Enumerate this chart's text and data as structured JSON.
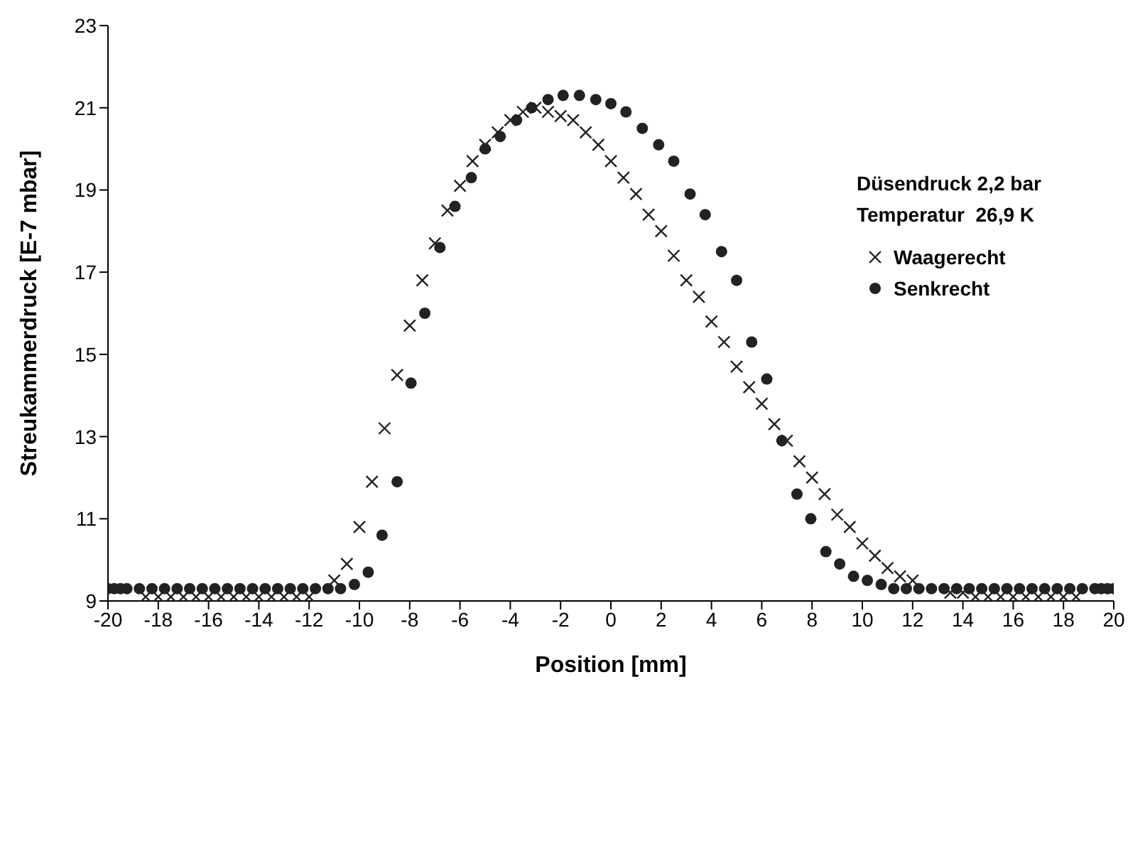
{
  "chart_data": {
    "type": "scatter",
    "xlabel": "Position [mm]",
    "ylabel": "Streukammerdruck [E-7 mbar]",
    "annotations": [
      "Düsendruck 2,2 bar",
      "Temperatur  26,9 K"
    ],
    "xlim": [
      -20,
      20
    ],
    "xticks": [
      -20,
      -18,
      -16,
      -14,
      -12,
      -10,
      -8,
      -6,
      -4,
      -2,
      0,
      2,
      4,
      6,
      8,
      10,
      12,
      14,
      16,
      18,
      20
    ],
    "ylim": [
      9,
      23
    ],
    "yticks": [
      9,
      11,
      13,
      15,
      17,
      19,
      21,
      23
    ],
    "grid": false,
    "legend": "top right",
    "series": [
      {
        "name": "Waagerecht",
        "color": "#222222",
        "marker": "cross",
        "x": [
          -18.5,
          -18,
          -17.5,
          -17,
          -16.5,
          -16,
          -15.5,
          -15,
          -14.5,
          -14,
          -13.5,
          -13,
          -12.5,
          -12,
          -11,
          -10.5,
          -10,
          -9.5,
          -9,
          -8.5,
          -8,
          -7.5,
          -7,
          -6.5,
          -6,
          -5.5,
          -5,
          -4.5,
          -4,
          -3.5,
          -3,
          -2.5,
          -2,
          -1.5,
          -1,
          -0.5,
          0,
          0.5,
          1,
          1.5,
          2,
          2.5,
          3,
          3.5,
          4,
          4.5,
          5,
          5.5,
          6,
          6.5,
          7,
          7.5,
          8,
          8.5,
          9,
          9.5,
          10,
          10.5,
          11,
          11.5,
          12,
          13.5,
          14,
          14.5,
          15,
          15.5,
          16,
          16.5,
          17,
          17.5,
          18,
          18.5
        ],
        "values": [
          9.1,
          9.1,
          9.1,
          9.1,
          9.1,
          9.1,
          9.1,
          9.1,
          9.1,
          9.1,
          9.1,
          9.1,
          9.1,
          9.1,
          9.5,
          9.9,
          10.8,
          11.9,
          13.2,
          14.5,
          15.7,
          16.8,
          17.7,
          18.5,
          19.1,
          19.7,
          20.1,
          20.4,
          20.7,
          20.9,
          21.0,
          20.9,
          20.8,
          20.7,
          20.4,
          20.1,
          19.7,
          19.3,
          18.9,
          18.4,
          18.0,
          17.4,
          16.8,
          16.4,
          15.8,
          15.3,
          14.7,
          14.2,
          13.8,
          13.3,
          12.9,
          12.4,
          12.0,
          11.6,
          11.1,
          10.8,
          10.4,
          10.1,
          9.8,
          9.6,
          9.5,
          9.2,
          9.2,
          9.1,
          9.1,
          9.1,
          9.1,
          9.1,
          9.1,
          9.1,
          9.1,
          9.1
        ]
      },
      {
        "name": "Senkrecht",
        "color": "#222222",
        "marker": "circle",
        "x": [
          -20,
          -19.75,
          -19.5,
          -19.25,
          -18.75,
          -18.25,
          -17.75,
          -17.25,
          -16.75,
          -16.25,
          -15.75,
          -15.25,
          -14.75,
          -14.25,
          -13.75,
          -13.25,
          -12.75,
          -12.25,
          -11.75,
          -11.25,
          -10.75,
          -10.2,
          -9.65,
          -9.1,
          -8.5,
          -7.95,
          -7.4,
          -6.8,
          -6.2,
          -5.55,
          -5,
          -4.4,
          -3.75,
          -3.15,
          -2.5,
          -1.9,
          -1.25,
          -0.6,
          0,
          0.6,
          1.25,
          1.9,
          2.5,
          3.15,
          3.75,
          4.4,
          5,
          5.6,
          6.2,
          6.8,
          7.4,
          7.95,
          8.55,
          9.1,
          9.65,
          10.2,
          10.75,
          11.25,
          11.75,
          12.25,
          12.75,
          13.25,
          13.75,
          14.25,
          14.75,
          15.25,
          15.75,
          16.25,
          16.75,
          17.25,
          17.75,
          18.25,
          18.75,
          19.25,
          19.5,
          19.75,
          20
        ],
        "values": [
          9.3,
          9.3,
          9.3,
          9.3,
          9.3,
          9.3,
          9.3,
          9.3,
          9.3,
          9.3,
          9.3,
          9.3,
          9.3,
          9.3,
          9.3,
          9.3,
          9.3,
          9.3,
          9.3,
          9.3,
          9.3,
          9.4,
          9.7,
          10.6,
          11.9,
          14.3,
          16.0,
          17.6,
          18.6,
          19.3,
          20.0,
          20.3,
          20.7,
          21.0,
          21.2,
          21.3,
          21.3,
          21.2,
          21.1,
          20.9,
          20.5,
          20.1,
          19.7,
          18.9,
          18.4,
          17.5,
          16.8,
          15.3,
          14.4,
          12.9,
          11.6,
          11.0,
          10.2,
          9.9,
          9.6,
          9.5,
          9.4,
          9.3,
          9.3,
          9.3,
          9.3,
          9.3,
          9.3,
          9.3,
          9.3,
          9.3,
          9.3,
          9.3,
          9.3,
          9.3,
          9.3,
          9.3,
          9.3,
          9.3,
          9.3,
          9.3,
          9.3
        ]
      }
    ]
  }
}
